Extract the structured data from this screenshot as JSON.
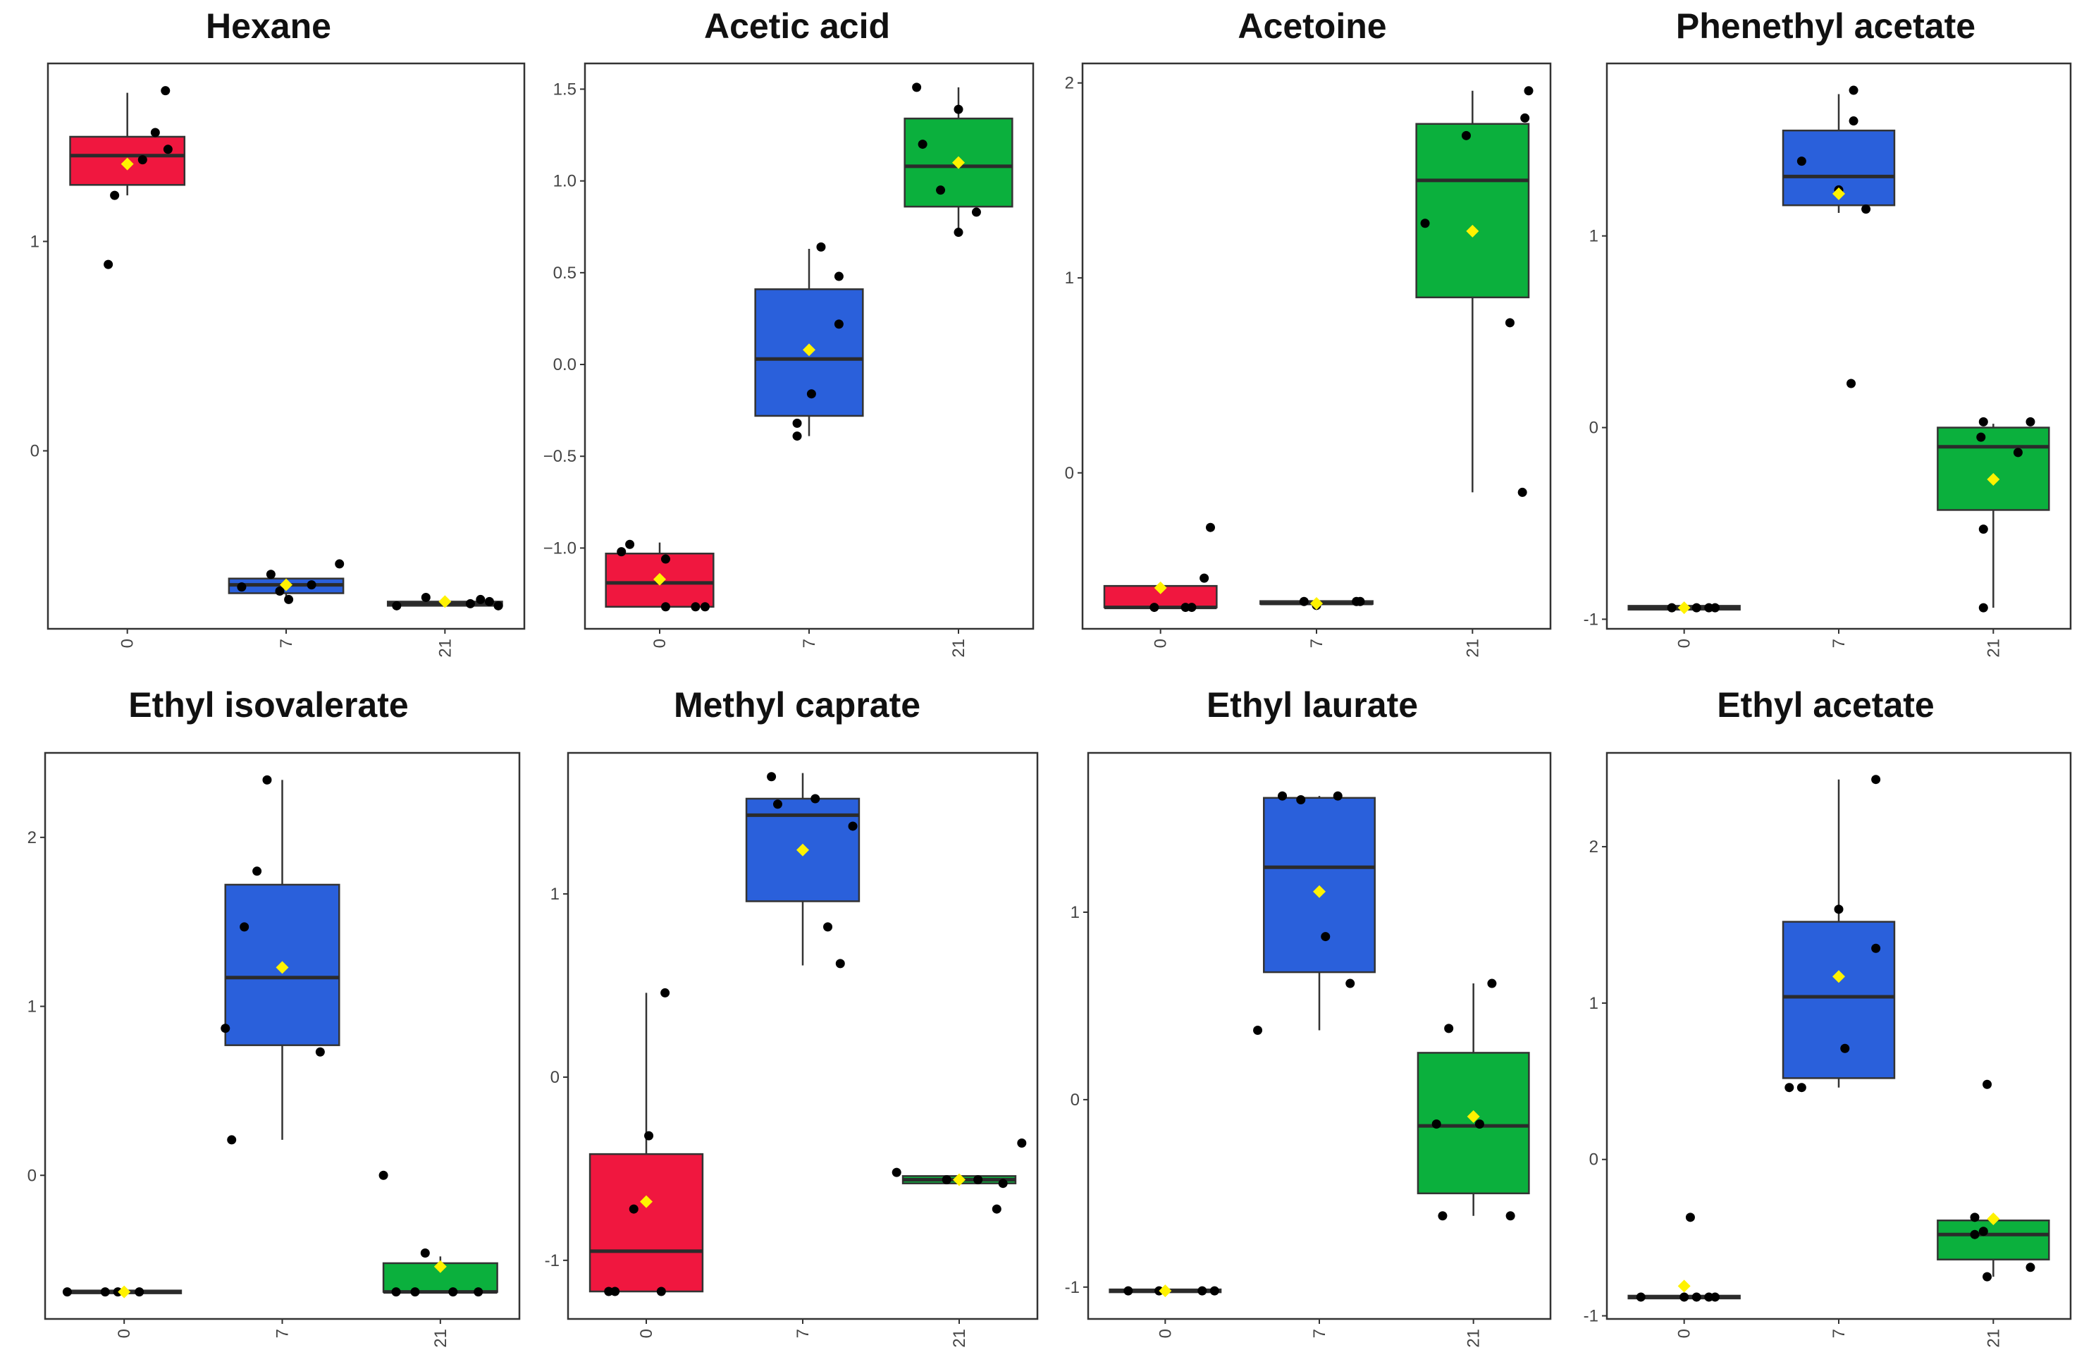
{
  "colors": {
    "day0": "#F0173F",
    "day7": "#2A60DB",
    "day21": "#0BB03D",
    "mean": "#FFF200",
    "point": "#000000",
    "frame": "#333333"
  },
  "chart_data": [
    {
      "type": "boxplot",
      "title": "Hexane",
      "categories": [
        "0",
        "7",
        "21"
      ],
      "yticks": [
        0,
        1
      ],
      "ylim": [
        -0.85,
        1.85
      ],
      "boxes": [
        {
          "q1": 1.27,
          "median": 1.41,
          "q3": 1.5,
          "lo": 1.22,
          "hi": 1.71,
          "mean": 1.37,
          "points": [
            [
              -0.15,
              0.89
            ],
            [
              -0.1,
              1.22
            ],
            [
              0.12,
              1.39
            ],
            [
              0.22,
              1.52
            ],
            [
              0.3,
              1.72
            ],
            [
              0.32,
              1.44
            ]
          ]
        },
        {
          "q1": -0.68,
          "median": -0.64,
          "q3": -0.61,
          "lo": -0.71,
          "hi": -0.61,
          "mean": -0.64,
          "points": [
            [
              -0.35,
              -0.65
            ],
            [
              -0.12,
              -0.59
            ],
            [
              -0.05,
              -0.67
            ],
            [
              0.02,
              -0.71
            ],
            [
              0.2,
              -0.64
            ],
            [
              0.42,
              -0.54
            ]
          ]
        },
        {
          "q1": -0.74,
          "median": -0.73,
          "q3": -0.72,
          "lo": -0.74,
          "hi": -0.72,
          "mean": -0.72,
          "points": [
            [
              -0.38,
              -0.74
            ],
            [
              -0.15,
              -0.7
            ],
            [
              0.2,
              -0.73
            ],
            [
              0.28,
              -0.71
            ],
            [
              0.35,
              -0.72
            ],
            [
              0.42,
              -0.74
            ]
          ]
        }
      ]
    },
    {
      "type": "boxplot",
      "title": "Acetic acid",
      "categories": [
        "0",
        "7",
        "21"
      ],
      "yticks": [
        -1.0,
        -0.5,
        0.0,
        0.5,
        1.0,
        1.5
      ],
      "yticklabels": [
        "−1.0",
        "−0.5",
        "0.0",
        "0.5",
        "1.0",
        "1.5"
      ],
      "ylim": [
        -1.44,
        1.64
      ],
      "boxes": [
        {
          "q1": -1.32,
          "median": -1.19,
          "q3": -1.03,
          "lo": -1.32,
          "hi": -0.97,
          "mean": -1.17,
          "points": [
            [
              -0.32,
              -1.02
            ],
            [
              -0.25,
              -0.98
            ],
            [
              0.05,
              -1.06
            ],
            [
              0.05,
              -1.32
            ],
            [
              0.3,
              -1.32
            ],
            [
              0.38,
              -1.32
            ]
          ]
        },
        {
          "q1": -0.28,
          "median": 0.03,
          "q3": 0.41,
          "lo": -0.39,
          "hi": 0.63,
          "mean": 0.08,
          "points": [
            [
              -0.1,
              -0.32
            ],
            [
              -0.1,
              -0.39
            ],
            [
              0.02,
              -0.16
            ],
            [
              0.1,
              0.64
            ],
            [
              0.25,
              0.22
            ],
            [
              0.25,
              0.48
            ]
          ]
        },
        {
          "q1": 0.86,
          "median": 1.08,
          "q3": 1.34,
          "lo": 0.72,
          "hi": 1.51,
          "mean": 1.1,
          "points": [
            [
              -0.35,
              1.51
            ],
            [
              -0.3,
              1.2
            ],
            [
              -0.15,
              0.95
            ],
            [
              0.0,
              0.72
            ],
            [
              0.0,
              1.39
            ],
            [
              0.15,
              0.83
            ]
          ]
        }
      ]
    },
    {
      "type": "boxplot",
      "title": "Acetoine",
      "categories": [
        "0",
        "7",
        "21"
      ],
      "yticks": [
        0,
        1,
        2
      ],
      "ylim": [
        -0.8,
        2.1
      ],
      "boxes": [
        {
          "q1": -0.69,
          "median": -0.69,
          "q3": -0.58,
          "lo": -0.69,
          "hi": -0.58,
          "mean": -0.59,
          "points": [
            [
              -0.05,
              -0.69
            ],
            [
              0.2,
              -0.69
            ],
            [
              0.25,
              -0.69
            ],
            [
              0.35,
              -0.54
            ],
            [
              0.4,
              -0.28
            ]
          ]
        },
        {
          "q1": -0.67,
          "median": -0.67,
          "q3": -0.66,
          "lo": -0.67,
          "hi": -0.66,
          "mean": -0.67,
          "points": [
            [
              -0.1,
              -0.66
            ],
            [
              0.0,
              -0.68
            ],
            [
              0.32,
              -0.66
            ],
            [
              0.35,
              -0.66
            ]
          ]
        },
        {
          "q1": 0.9,
          "median": 1.5,
          "q3": 1.79,
          "lo": -0.1,
          "hi": 1.96,
          "mean": 1.24,
          "points": [
            [
              -0.38,
              1.28
            ],
            [
              -0.05,
              1.73
            ],
            [
              0.3,
              0.77
            ],
            [
              0.4,
              -0.1
            ],
            [
              0.42,
              1.82
            ],
            [
              0.45,
              1.96
            ]
          ]
        }
      ]
    },
    {
      "type": "boxplot",
      "title": "Phenethyl acetate",
      "categories": [
        "0",
        "7",
        "21"
      ],
      "yticks": [
        -1,
        0,
        1
      ],
      "ylim": [
        -1.05,
        1.9
      ],
      "boxes": [
        {
          "q1": -0.95,
          "median": -0.94,
          "q3": -0.93,
          "lo": -0.95,
          "hi": -0.93,
          "mean": -0.94,
          "points": [
            [
              -0.1,
              -0.94
            ],
            [
              0.1,
              -0.94
            ],
            [
              0.2,
              -0.94
            ],
            [
              0.25,
              -0.94
            ]
          ]
        },
        {
          "q1": 1.16,
          "median": 1.31,
          "q3": 1.55,
          "lo": 1.12,
          "hi": 1.74,
          "mean": 1.22,
          "points": [
            [
              -0.3,
              1.39
            ],
            [
              0.0,
              1.24
            ],
            [
              0.1,
              0.23
            ],
            [
              0.12,
              1.76
            ],
            [
              0.12,
              1.6
            ],
            [
              0.22,
              1.14
            ]
          ]
        },
        {
          "q1": -0.43,
          "median": -0.1,
          "q3": 0.0,
          "lo": -0.94,
          "hi": 0.02,
          "mean": -0.27,
          "points": [
            [
              -0.1,
              -0.05
            ],
            [
              -0.08,
              0.03
            ],
            [
              -0.08,
              -0.53
            ],
            [
              -0.08,
              -0.94
            ],
            [
              0.2,
              -0.13
            ],
            [
              0.3,
              0.03
            ]
          ]
        }
      ]
    },
    {
      "type": "boxplot",
      "title": "Ethyl isovalerate",
      "categories": [
        "0",
        "7",
        "21"
      ],
      "yticks": [
        0,
        1,
        2
      ],
      "ylim": [
        -0.85,
        2.5
      ],
      "boxes": [
        {
          "q1": -0.69,
          "median": -0.69,
          "q3": -0.69,
          "lo": -0.69,
          "hi": -0.69,
          "mean": -0.69,
          "points": [
            [
              -0.45,
              -0.69
            ],
            [
              -0.15,
              -0.69
            ],
            [
              -0.05,
              -0.69
            ],
            [
              0.12,
              -0.69
            ]
          ]
        },
        {
          "q1": 0.77,
          "median": 1.17,
          "q3": 1.72,
          "lo": 0.21,
          "hi": 2.34,
          "mean": 1.23,
          "points": [
            [
              -0.45,
              0.87
            ],
            [
              -0.4,
              0.21
            ],
            [
              -0.3,
              1.47
            ],
            [
              -0.2,
              1.8
            ],
            [
              -0.12,
              2.34
            ],
            [
              0.3,
              0.73
            ]
          ]
        },
        {
          "q1": -0.69,
          "median": -0.69,
          "q3": -0.52,
          "lo": -0.69,
          "hi": -0.48,
          "mean": -0.54,
          "points": [
            [
              -0.45,
              0.0
            ],
            [
              -0.35,
              -0.69
            ],
            [
              -0.2,
              -0.69
            ],
            [
              -0.12,
              -0.46
            ],
            [
              0.1,
              -0.69
            ],
            [
              0.3,
              -0.69
            ]
          ]
        }
      ]
    },
    {
      "type": "boxplot",
      "title": "Methyl caprate",
      "categories": [
        "0",
        "7",
        "21"
      ],
      "yticks": [
        -1,
        0,
        1
      ],
      "ylim": [
        -1.32,
        1.77
      ],
      "boxes": [
        {
          "q1": -1.17,
          "median": -0.95,
          "q3": -0.42,
          "lo": -1.17,
          "hi": 0.46,
          "mean": -0.68,
          "points": [
            [
              -0.3,
              -1.17
            ],
            [
              -0.25,
              -1.17
            ],
            [
              -0.1,
              -0.72
            ],
            [
              0.02,
              -0.32
            ],
            [
              0.12,
              -1.17
            ],
            [
              0.15,
              0.46
            ]
          ]
        },
        {
          "q1": 0.96,
          "median": 1.43,
          "q3": 1.52,
          "lo": 0.61,
          "hi": 1.66,
          "mean": 1.24,
          "points": [
            [
              -0.25,
              1.64
            ],
            [
              -0.2,
              1.49
            ],
            [
              0.1,
              1.52
            ],
            [
              0.2,
              0.82
            ],
            [
              0.3,
              0.62
            ],
            [
              0.4,
              1.37
            ]
          ]
        },
        {
          "q1": -0.58,
          "median": -0.56,
          "q3": -0.54,
          "lo": -0.58,
          "hi": -0.54,
          "mean": -0.56,
          "points": [
            [
              -0.5,
              -0.52
            ],
            [
              -0.1,
              -0.56
            ],
            [
              0.15,
              -0.56
            ],
            [
              0.3,
              -0.72
            ],
            [
              0.35,
              -0.58
            ],
            [
              0.5,
              -0.36
            ]
          ]
        }
      ]
    },
    {
      "type": "boxplot",
      "title": "Ethyl laurate",
      "categories": [
        "0",
        "7",
        "21"
      ],
      "yticks": [
        -1,
        0,
        1
      ],
      "ylim": [
        -1.17,
        1.85
      ],
      "boxes": [
        {
          "q1": -1.02,
          "median": -1.02,
          "q3": -1.02,
          "lo": -1.02,
          "hi": -1.02,
          "mean": -1.02,
          "points": [
            [
              -0.3,
              -1.02
            ],
            [
              -0.05,
              -1.02
            ],
            [
              0.3,
              -1.02
            ],
            [
              0.4,
              -1.02
            ]
          ]
        },
        {
          "q1": 0.68,
          "median": 1.24,
          "q3": 1.61,
          "lo": 0.37,
          "hi": 1.62,
          "mean": 1.11,
          "points": [
            [
              -0.5,
              0.37
            ],
            [
              -0.3,
              1.62
            ],
            [
              -0.15,
              1.6
            ],
            [
              0.05,
              0.87
            ],
            [
              0.15,
              1.62
            ],
            [
              0.25,
              0.62
            ]
          ]
        },
        {
          "q1": -0.5,
          "median": -0.14,
          "q3": 0.25,
          "lo": -0.62,
          "hi": 0.62,
          "mean": -0.09,
          "points": [
            [
              -0.3,
              -0.13
            ],
            [
              -0.25,
              -0.62
            ],
            [
              -0.2,
              0.38
            ],
            [
              0.05,
              -0.13
            ],
            [
              0.15,
              0.62
            ],
            [
              0.3,
              -0.62
            ]
          ]
        }
      ]
    },
    {
      "type": "boxplot",
      "title": "Ethyl acetate",
      "categories": [
        "0",
        "7",
        "21"
      ],
      "yticks": [
        -1,
        0,
        1,
        2
      ],
      "ylim": [
        -1.02,
        2.6
      ],
      "boxes": [
        {
          "q1": -0.88,
          "median": -0.88,
          "q3": -0.88,
          "lo": -0.88,
          "hi": -0.88,
          "mean": -0.81,
          "points": [
            [
              -0.35,
              -0.88
            ],
            [
              0.0,
              -0.88
            ],
            [
              0.1,
              -0.88
            ],
            [
              0.2,
              -0.88
            ],
            [
              0.25,
              -0.88
            ],
            [
              0.05,
              -0.37
            ]
          ]
        },
        {
          "q1": 0.52,
          "median": 1.04,
          "q3": 1.52,
          "lo": 0.46,
          "hi": 2.43,
          "mean": 1.17,
          "points": [
            [
              -0.4,
              0.46
            ],
            [
              -0.3,
              0.46
            ],
            [
              0.0,
              1.6
            ],
            [
              0.05,
              0.71
            ],
            [
              0.3,
              1.35
            ],
            [
              0.3,
              2.43
            ]
          ]
        },
        {
          "q1": -0.64,
          "median": -0.48,
          "q3": -0.39,
          "lo": -0.75,
          "hi": -0.39,
          "mean": -0.38,
          "points": [
            [
              -0.15,
              -0.48
            ],
            [
              -0.15,
              -0.37
            ],
            [
              -0.08,
              -0.46
            ],
            [
              -0.05,
              0.48
            ],
            [
              -0.05,
              -0.75
            ],
            [
              0.3,
              -0.69
            ]
          ]
        }
      ]
    }
  ]
}
